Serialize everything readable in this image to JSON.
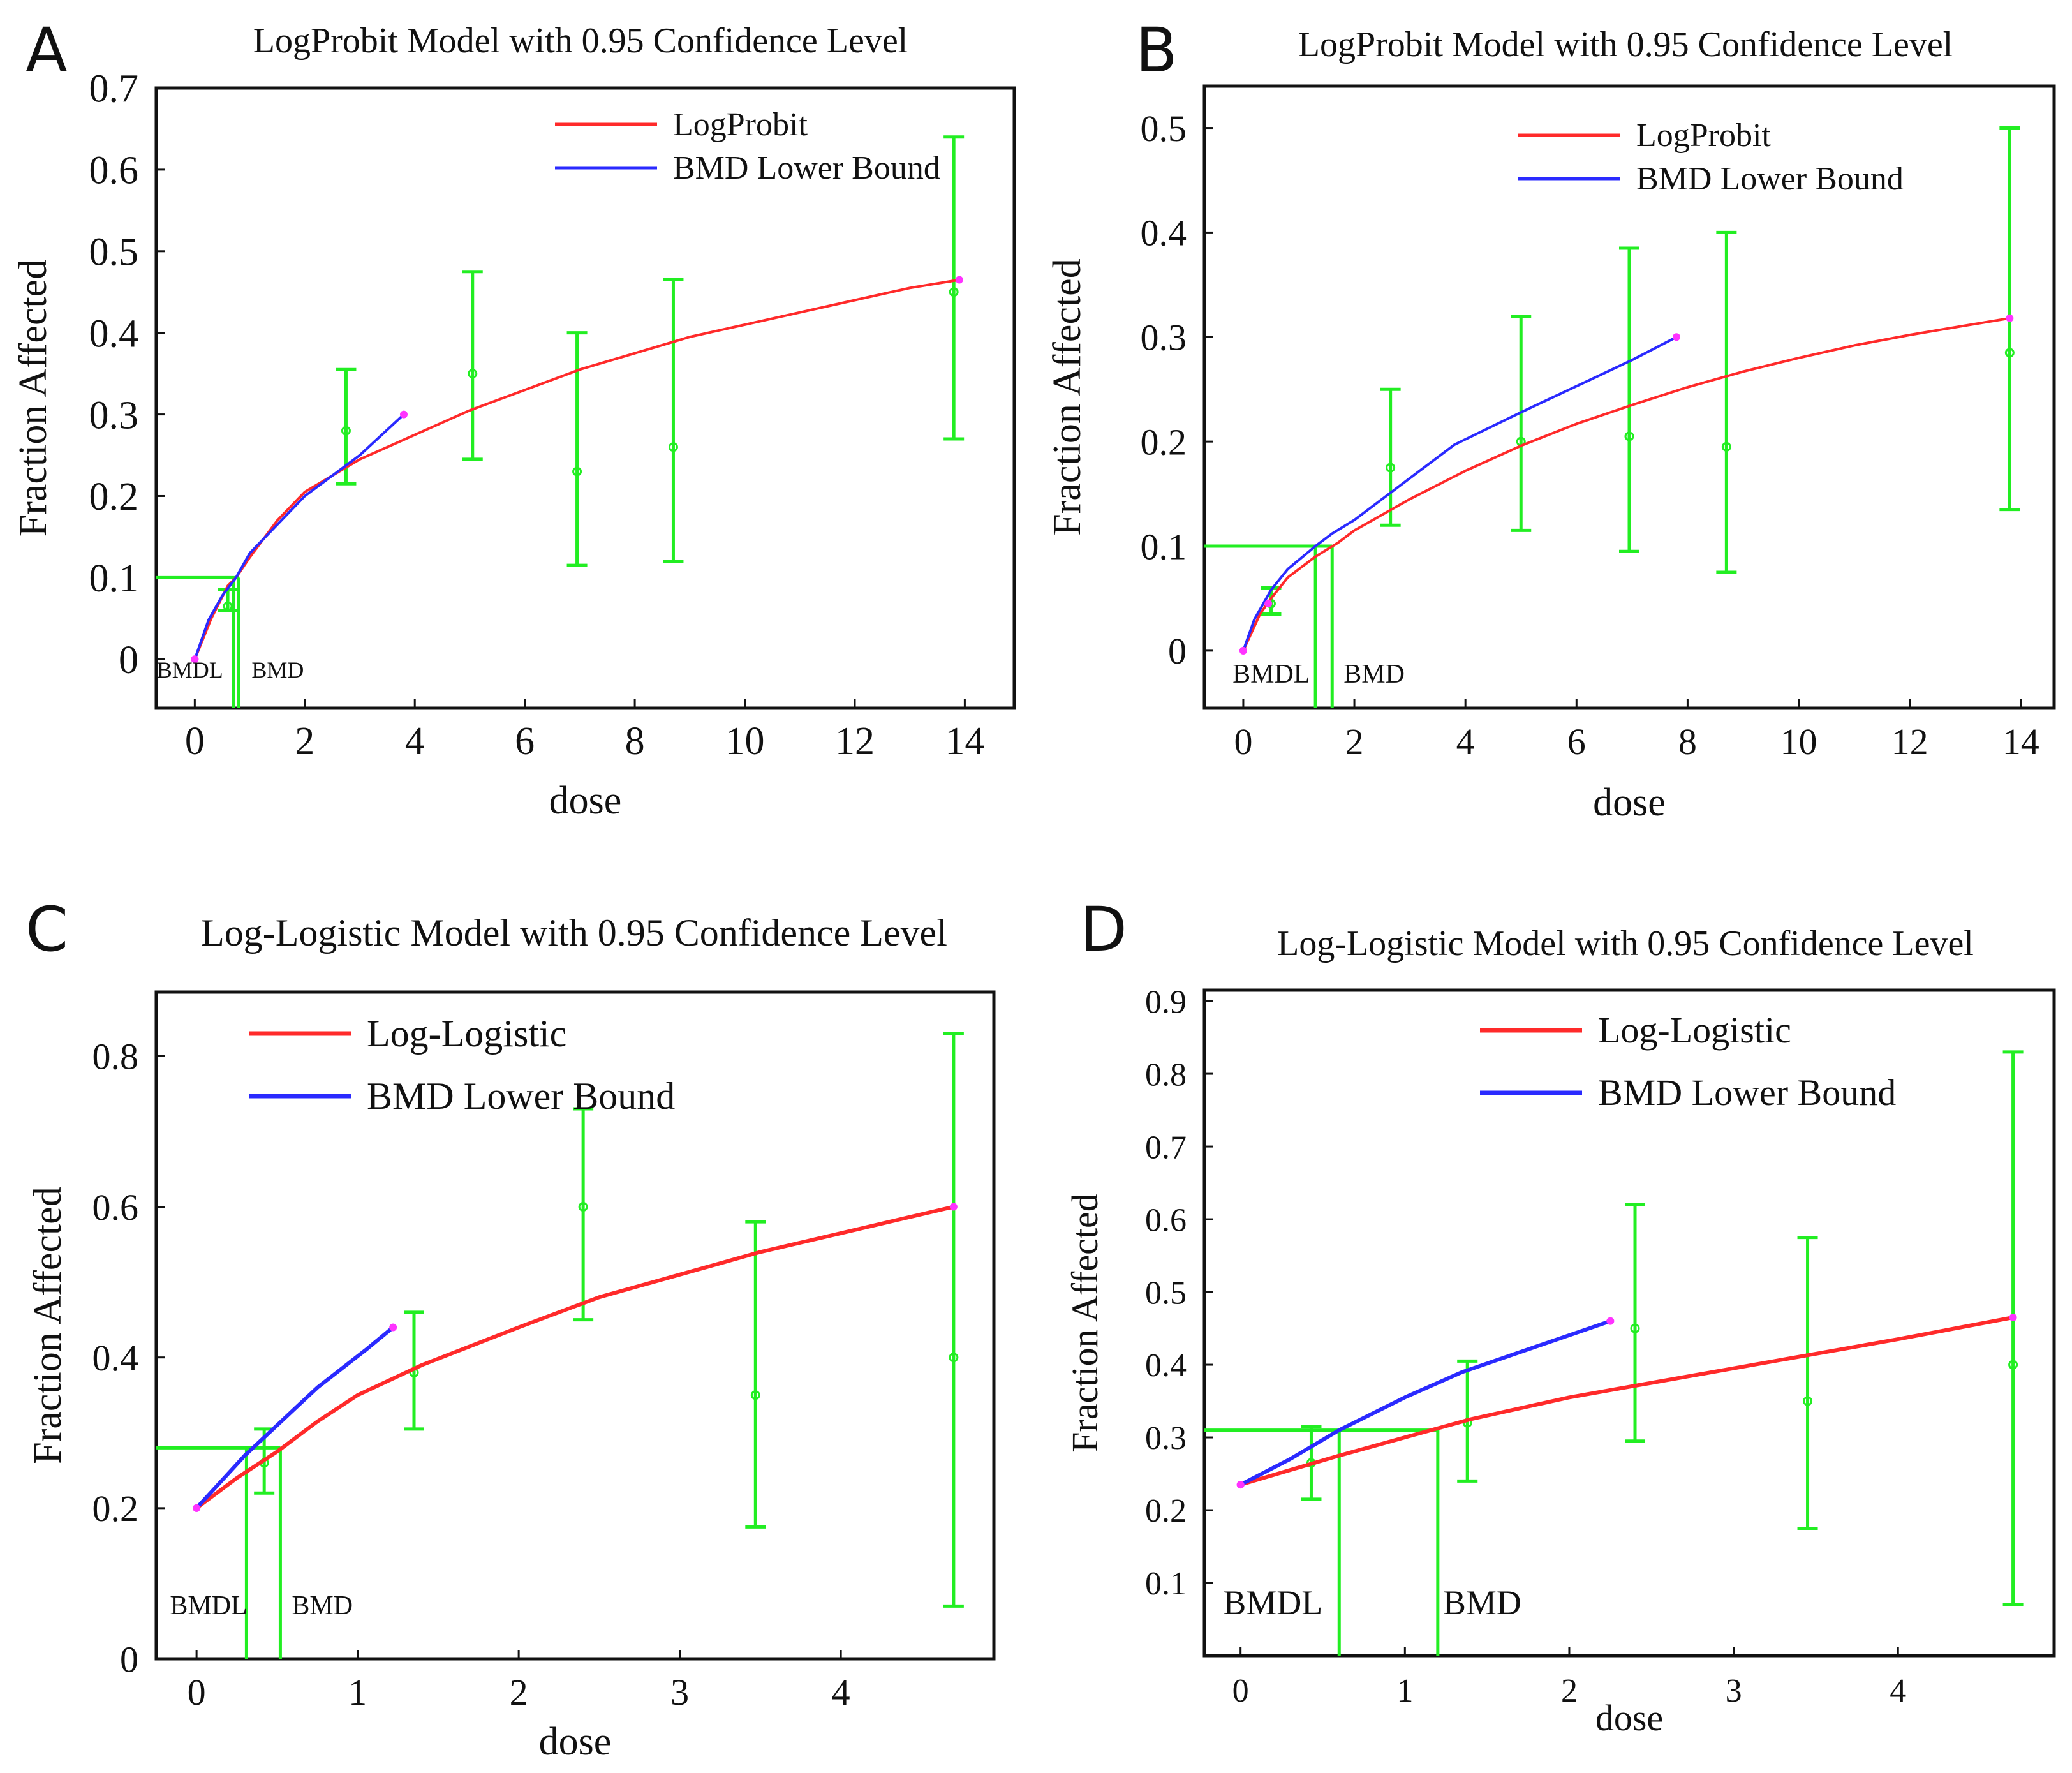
{
  "colors": {
    "model": "#ff2a2a",
    "lower": "#2a2aff",
    "data": "#22ee22",
    "marker": "#ff33ff",
    "frame": "#111111"
  },
  "chart_data": [
    {
      "panel": "A",
      "type": "line",
      "title": "LogProbit Model with 0.95 Confidence Level",
      "xlabel": "dose",
      "ylabel": "Fraction Affected",
      "xlim": [
        -0.7,
        14.9
      ],
      "ylim": [
        -0.06,
        0.7
      ],
      "xticks": [
        "0",
        "2",
        "4",
        "6",
        "8",
        "10",
        "12",
        "14"
      ],
      "yticks": [
        "0",
        "0.1",
        "0.2",
        "0.3",
        "0.4",
        "0.5",
        "0.6",
        "0.7"
      ],
      "legend": {
        "position": "top-right",
        "entries": [
          "LogProbit",
          "BMD Lower Bound"
        ]
      },
      "series": [
        {
          "name": "LogProbit",
          "x": [
            0,
            0.3,
            0.6,
            0.75,
            1,
            1.5,
            2,
            3,
            4,
            5,
            6,
            7,
            8,
            9,
            10,
            11,
            12,
            13,
            13.9
          ],
          "y": [
            0,
            0.05,
            0.09,
            0.1,
            0.125,
            0.17,
            0.205,
            0.245,
            0.275,
            0.305,
            0.33,
            0.355,
            0.375,
            0.395,
            0.41,
            0.425,
            0.44,
            0.455,
            0.465
          ]
        },
        {
          "name": "BMD Lower Bound",
          "x": [
            0,
            0.25,
            0.5,
            0.75,
            1,
            1.5,
            2,
            3,
            3.8
          ],
          "y": [
            0,
            0.048,
            0.078,
            0.1,
            0.13,
            0.165,
            0.2,
            0.25,
            0.3
          ]
        }
      ],
      "error_bars": [
        {
          "x": 0.6,
          "y": 0.065,
          "low": 0.06,
          "high": 0.085
        },
        {
          "x": 2.75,
          "y": 0.28,
          "low": 0.215,
          "high": 0.355
        },
        {
          "x": 5.05,
          "y": 0.35,
          "low": 0.245,
          "high": 0.475
        },
        {
          "x": 6.95,
          "y": 0.23,
          "low": 0.115,
          "high": 0.4
        },
        {
          "x": 8.7,
          "y": 0.26,
          "low": 0.12,
          "high": 0.465
        },
        {
          "x": 13.8,
          "y": 0.45,
          "low": 0.27,
          "high": 0.64
        }
      ],
      "bmr": 0.1,
      "bmdl": 0.7,
      "bmd": 0.8,
      "bmdl_label": "BMDL",
      "bmd_label": "BMD"
    },
    {
      "panel": "B",
      "type": "line",
      "title": "LogProbit Model with 0.95 Confidence Level",
      "xlabel": "dose",
      "ylabel": "Fraction Affected",
      "xlim": [
        -0.7,
        14.6
      ],
      "ylim": [
        -0.055,
        0.54
      ],
      "xticks": [
        "0",
        "2",
        "4",
        "6",
        "8",
        "10",
        "12",
        "14"
      ],
      "yticks": [
        "0",
        "0.1",
        "0.2",
        "0.3",
        "0.4",
        "0.5"
      ],
      "legend": {
        "position": "top-center",
        "entries": [
          "LogProbit",
          "BMD Lower Bound"
        ]
      },
      "series": [
        {
          "name": "LogProbit",
          "x": [
            0,
            0.3,
            0.5,
            0.8,
            1.3,
            1.7,
            2,
            3,
            4,
            5,
            6,
            7,
            8,
            9,
            10,
            11,
            12,
            13,
            13.8
          ],
          "y": [
            0,
            0.035,
            0.05,
            0.07,
            0.09,
            0.103,
            0.115,
            0.145,
            0.172,
            0.196,
            0.217,
            0.235,
            0.252,
            0.267,
            0.28,
            0.292,
            0.302,
            0.311,
            0.318
          ]
        },
        {
          "name": "BMD Lower Bound",
          "x": [
            0,
            0.2,
            0.5,
            0.8,
            1.3,
            1.6,
            2,
            3,
            3.8,
            5,
            6,
            7,
            7.8
          ],
          "y": [
            0,
            0.03,
            0.058,
            0.078,
            0.1,
            0.112,
            0.125,
            0.165,
            0.197,
            0.228,
            0.253,
            0.278,
            0.3
          ]
        },
        {
          "name": "points",
          "x": [
            0.45
          ],
          "y": [
            0.045
          ]
        }
      ],
      "error_bars": [
        {
          "x": 0.5,
          "y": 0.045,
          "low": 0.035,
          "high": 0.06
        },
        {
          "x": 2.65,
          "y": 0.175,
          "low": 0.12,
          "high": 0.25
        },
        {
          "x": 5,
          "y": 0.2,
          "low": 0.115,
          "high": 0.32
        },
        {
          "x": 6.95,
          "y": 0.205,
          "low": 0.095,
          "high": 0.385
        },
        {
          "x": 8.7,
          "y": 0.195,
          "low": 0.075,
          "high": 0.4
        },
        {
          "x": 13.8,
          "y": 0.285,
          "low": 0.135,
          "high": 0.5
        }
      ],
      "bmr": 0.1,
      "bmdl": 1.3,
      "bmd": 1.6,
      "bmdl_label": "BMDL",
      "bmd_label": "BMD"
    },
    {
      "panel": "C",
      "type": "line",
      "title": "Log-Logistic Model with 0.95 Confidence Level",
      "xlabel": "dose",
      "ylabel": "Fraction Affected",
      "xlim": [
        -0.25,
        4.95
      ],
      "ylim": [
        0,
        0.885
      ],
      "xticks": [
        "0",
        "1",
        "2",
        "3",
        "4"
      ],
      "yticks": [
        "0",
        "0.2",
        "0.4",
        "0.6",
        "0.8"
      ],
      "legend": {
        "position": "top-left",
        "entries": [
          "Log-Logistic",
          "BMD Lower Bound"
        ]
      },
      "series": [
        {
          "name": "Log-Logistic",
          "x": [
            0,
            0.25,
            0.5,
            0.75,
            1,
            1.4,
            2,
            2.5,
            3,
            3.5,
            4,
            4.7
          ],
          "y": [
            0.2,
            0.24,
            0.275,
            0.315,
            0.35,
            0.39,
            0.44,
            0.48,
            0.51,
            0.54,
            0.565,
            0.6
          ]
        },
        {
          "name": "BMD Lower Bound",
          "x": [
            0,
            0.15,
            0.3,
            0.45,
            0.6,
            0.75,
            0.9,
            1.05,
            1.22
          ],
          "y": [
            0.2,
            0.235,
            0.27,
            0.3,
            0.33,
            0.36,
            0.385,
            0.41,
            0.44
          ]
        }
      ],
      "error_bars": [
        {
          "x": 0.42,
          "y": 0.26,
          "low": 0.22,
          "high": 0.305
        },
        {
          "x": 1.35,
          "y": 0.38,
          "low": 0.305,
          "high": 0.46
        },
        {
          "x": 2.4,
          "y": 0.6,
          "low": 0.45,
          "high": 0.73
        },
        {
          "x": 3.47,
          "y": 0.35,
          "low": 0.175,
          "high": 0.58
        },
        {
          "x": 4.7,
          "y": 0.4,
          "low": 0.07,
          "high": 0.83
        }
      ],
      "bmr": 0.28,
      "bmdl": 0.31,
      "bmd": 0.52,
      "bmdl_label": "BMDL",
      "bmd_label": "BMD"
    },
    {
      "panel": "D",
      "type": "line",
      "title": "Log-Logistic Model with 0.95 Confidence Level",
      "xlabel": "dose",
      "ylabel": "Fraction Affected",
      "xlim": [
        -0.22,
        4.95
      ],
      "ylim": [
        0,
        0.915
      ],
      "xticks": [
        "0",
        "1",
        "2",
        "3",
        "4"
      ],
      "yticks": [
        "0.1",
        "0.2",
        "0.3",
        "0.4",
        "0.5",
        "0.6",
        "0.7",
        "0.8",
        "0.9"
      ],
      "legend": {
        "position": "top-center",
        "entries": [
          "Log-Logistic",
          "BMD Lower Bound"
        ]
      },
      "series": [
        {
          "name": "Log-Logistic",
          "x": [
            0,
            0.3,
            0.6,
            1,
            1.4,
            2,
            2.5,
            3,
            3.5,
            4,
            4.7
          ],
          "y": [
            0.235,
            0.255,
            0.275,
            0.3,
            0.325,
            0.355,
            0.375,
            0.395,
            0.415,
            0.435,
            0.465
          ]
        },
        {
          "name": "BMD Lower Bound",
          "x": [
            0,
            0.3,
            0.6,
            1,
            1.35,
            1.8,
            2.25
          ],
          "y": [
            0.235,
            0.27,
            0.31,
            0.355,
            0.39,
            0.425,
            0.46
          ]
        }
      ],
      "error_bars": [
        {
          "x": 0.43,
          "y": 0.265,
          "low": 0.215,
          "high": 0.315
        },
        {
          "x": 1.38,
          "y": 0.32,
          "low": 0.24,
          "high": 0.405
        },
        {
          "x": 2.4,
          "y": 0.45,
          "low": 0.295,
          "high": 0.62
        },
        {
          "x": 3.45,
          "y": 0.35,
          "low": 0.175,
          "high": 0.575
        },
        {
          "x": 4.7,
          "y": 0.4,
          "low": 0.07,
          "high": 0.83
        }
      ],
      "bmr": 0.31,
      "bmdl": 0.6,
      "bmd": 1.2,
      "bmdl_label": "BMDL",
      "bmd_label": "BMD"
    }
  ]
}
